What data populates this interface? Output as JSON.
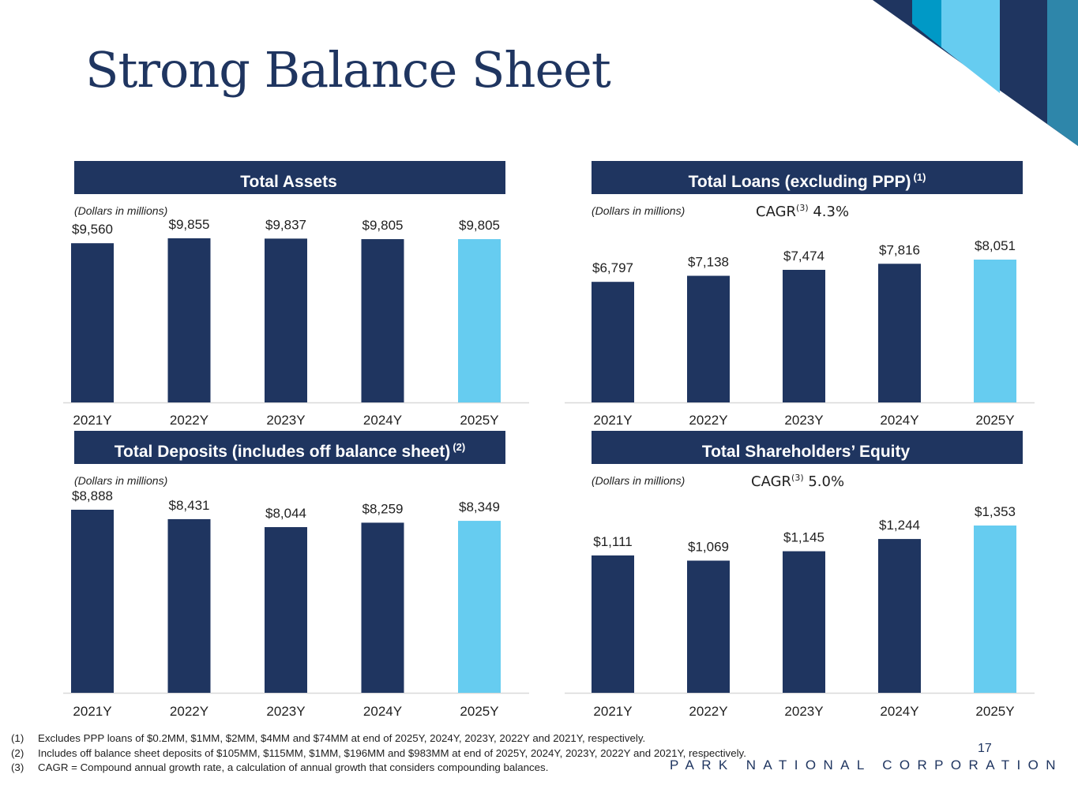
{
  "title": "Strong Balance Sheet",
  "colors": {
    "navy": "#1f3560",
    "light_blue": "#66ccf0",
    "mid_blue": "#0099c6",
    "steel_blue": "#2e86aa"
  },
  "panels": [
    {
      "header": "Total Assets",
      "header_sup": "",
      "units": "(Dollars in millions)",
      "cagr_label": "",
      "cagr_sup": "",
      "cagr_value": ""
    },
    {
      "header": "Total Loans (excluding PPP)",
      "header_sup": "(1)",
      "units": "(Dollars in millions)",
      "cagr_label": "CAGR",
      "cagr_sup": "(3)",
      "cagr_value": "4.3%"
    },
    {
      "header": "Total Deposits (includes off balance sheet)",
      "header_sup": "(2)",
      "units": "(Dollars in millions)",
      "cagr_label": "",
      "cagr_sup": "",
      "cagr_value": ""
    },
    {
      "header": "Total Shareholders’ Equity",
      "header_sup": "",
      "units": "(Dollars in millions)",
      "cagr_label": "CAGR",
      "cagr_sup": "(3)",
      "cagr_value": "5.0%"
    }
  ],
  "chart_data": [
    {
      "type": "bar",
      "title": "Total Assets",
      "categories": [
        "2021Y",
        "2022Y",
        "2023Y",
        "2024Y",
        "2025Y"
      ],
      "values": [
        9560,
        9855,
        9837,
        9805,
        9805
      ],
      "labels": [
        "$9,560",
        "$9,855",
        "$9,837",
        "$9,805",
        "$9,805"
      ],
      "highlight_color": "#66ccf0",
      "bar_color": "#1f3560"
    },
    {
      "type": "bar",
      "title": "Total Loans (excluding PPP)",
      "categories": [
        "2021Y",
        "2022Y",
        "2023Y",
        "2024Y",
        "2025Y"
      ],
      "values": [
        6797,
        7138,
        7474,
        7816,
        8051
      ],
      "labels": [
        "$6,797",
        "$7,138",
        "$7,474",
        "$7,816",
        "$8,051"
      ],
      "highlight_color": "#66ccf0",
      "bar_color": "#1f3560"
    },
    {
      "type": "bar",
      "title": "Total Deposits (includes off balance sheet)",
      "categories": [
        "2021Y",
        "2022Y",
        "2023Y",
        "2024Y",
        "2025Y"
      ],
      "values": [
        8888,
        8431,
        8044,
        8259,
        8349
      ],
      "labels": [
        "$8,888",
        "$8,431",
        "$8,044",
        "$8,259",
        "$8,349"
      ],
      "highlight_color": "#66ccf0",
      "bar_color": "#1f3560"
    },
    {
      "type": "bar",
      "title": "Total Shareholders’ Equity",
      "categories": [
        "2021Y",
        "2022Y",
        "2023Y",
        "2024Y",
        "2025Y"
      ],
      "values": [
        1111,
        1069,
        1145,
        1244,
        1353
      ],
      "labels": [
        "$1,111",
        "$1,069",
        "$1,145",
        "$1,244",
        "$1,353"
      ],
      "highlight_color": "#66ccf0",
      "bar_color": "#1f3560"
    }
  ],
  "footnotes": [
    {
      "num": "(1)",
      "text": "Excludes PPP loans of $0.2MM, $1MM, $2MM, $4MM and $74MM at end of 2025Y, 2024Y, 2023Y, 2022Y and 2021Y, respectively."
    },
    {
      "num": "(2)",
      "text": "Includes off balance sheet deposits of $105MM, $115MM, $1MM, $196MM and $983MM at end of 2025Y, 2024Y, 2023Y, 2022Y and 2021Y, respectively."
    },
    {
      "num": "(3)",
      "text": "CAGR = Compound annual growth rate, a calculation of annual growth that considers compounding balances."
    }
  ],
  "page_number": "17",
  "company": "PARK NATIONAL CORPORATION"
}
